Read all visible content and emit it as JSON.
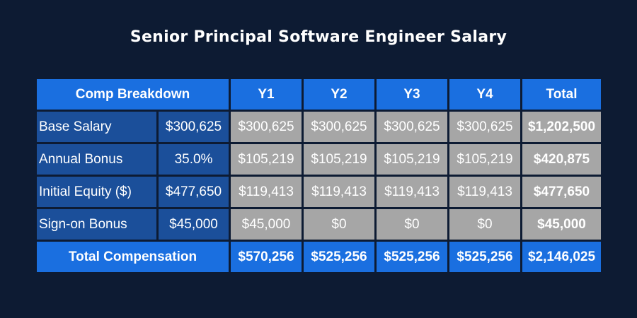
{
  "title": "Senior Principal Software Engineer Salary",
  "table": {
    "header": {
      "breakdown": "Comp Breakdown",
      "years": [
        "Y1",
        "Y2",
        "Y3",
        "Y4"
      ],
      "total": "Total"
    },
    "rows": [
      {
        "label": "Base Salary",
        "value": "$300,625",
        "years": [
          "$300,625",
          "$300,625",
          "$300,625",
          "$300,625"
        ],
        "total": "$1,202,500"
      },
      {
        "label": "Annual Bonus",
        "value": "35.0%",
        "years": [
          "$105,219",
          "$105,219",
          "$105,219",
          "$105,219"
        ],
        "total": "$420,875"
      },
      {
        "label": "Initial Equity ($)",
        "value": "$477,650",
        "years": [
          "$119,413",
          "$119,413",
          "$119,413",
          "$119,413"
        ],
        "total": "$477,650"
      },
      {
        "label": "Sign-on Bonus",
        "value": "$45,000",
        "years": [
          "$45,000",
          "$0",
          "$0",
          "$0"
        ],
        "total": "$45,000"
      }
    ],
    "footer": {
      "label": "Total Compensation",
      "years": [
        "$570,256",
        "$525,256",
        "$525,256",
        "$525,256"
      ],
      "total": "$2,146,025"
    }
  },
  "colors": {
    "background": "#0d1b33",
    "header_blue": "#1a6fe0",
    "label_blue": "#1b4f9a",
    "cell_gray": "#a6a6a6"
  }
}
